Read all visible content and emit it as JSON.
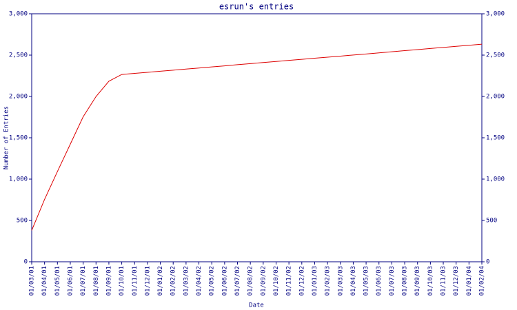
{
  "chart_data": {
    "type": "line",
    "title": "esrun's entries",
    "x_label": "Date",
    "y_label": "Number of Entries",
    "categories": [
      "01/03/01",
      "01/04/01",
      "01/05/01",
      "01/06/01",
      "01/07/01",
      "01/08/01",
      "01/09/01",
      "01/10/01",
      "01/11/01",
      "01/12/01",
      "01/01/02",
      "01/02/02",
      "01/03/02",
      "01/04/02",
      "01/05/02",
      "01/06/02",
      "01/07/02",
      "01/08/02",
      "01/09/02",
      "01/10/02",
      "01/11/02",
      "01/12/02",
      "01/01/03",
      "01/02/03",
      "01/03/03",
      "01/04/03",
      "01/05/03",
      "01/06/03",
      "01/07/03",
      "01/08/03",
      "01/09/03",
      "01/10/03",
      "01/11/03",
      "01/12/03",
      "01/01/04",
      "01/02/04"
    ],
    "values": [
      380,
      755,
      1092,
      1423,
      1754,
      1999,
      2184,
      2266,
      2279,
      2292,
      2305,
      2318,
      2331,
      2344,
      2357,
      2370,
      2384,
      2397,
      2410,
      2423,
      2436,
      2449,
      2462,
      2475,
      2488,
      2501,
      2514,
      2527,
      2541,
      2554,
      2567,
      2580,
      2593,
      2606,
      2619,
      2632
    ],
    "color": "#dd0000",
    "axis_color": "#000080",
    "ylim": [
      0,
      3000
    ],
    "yticks": [
      0,
      500,
      {
        "value": 1000,
        "label": "1,000"
      },
      {
        "value": 1500,
        "label": "1,500"
      },
      {
        "value": 2000,
        "label": "2,000"
      },
      {
        "value": 2500,
        "label": "2,500"
      },
      {
        "value": 3000,
        "label": "3,000"
      }
    ]
  }
}
